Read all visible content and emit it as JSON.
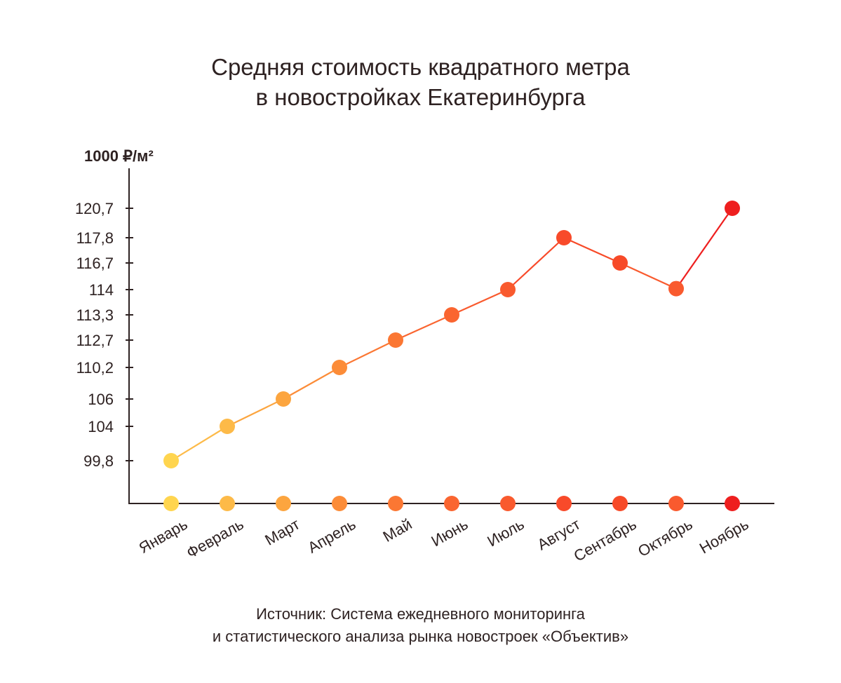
{
  "chart_data": {
    "type": "line",
    "title_lines": [
      "Средняя стоимость квадратного метра",
      "в новостройках Екатеринбурга"
    ],
    "ylabel": "1000 ₽/м²",
    "xlabel": "",
    "categories": [
      "Январь",
      "Февраль",
      "Март",
      "Апрель",
      "Май",
      "Июнь",
      "Июль",
      "Август",
      "Сентабрь",
      "Октябрь",
      "Ноябрь"
    ],
    "values": [
      99.8,
      104,
      106,
      110.2,
      112.7,
      113.3,
      114,
      117.8,
      116.7,
      114.1,
      120.7
    ],
    "y_ticks": [
      99.8,
      104,
      106,
      110.2,
      112.7,
      113.3,
      114,
      116.7,
      117.8,
      120.7
    ],
    "y_tick_labels": [
      "99,8",
      "104",
      "106",
      "110,2",
      "112,7",
      "113,3",
      "114",
      "116,7",
      "117,8",
      "120,7"
    ],
    "point_colors": [
      "#FFD54F",
      "#FDBA48",
      "#FCA53F",
      "#FC8C38",
      "#FB7733",
      "#FA6530",
      "#F95A2E",
      "#F84A2A",
      "#F74A28",
      "#F95A2E",
      "#EE1F1F"
    ],
    "axis_color": "#2e2222",
    "grid": false,
    "legend": "none"
  },
  "source_lines": [
    "Источник: Система ежедневного мониторинга",
    "и статистического анализа рынка новостроек «Объектив»"
  ]
}
